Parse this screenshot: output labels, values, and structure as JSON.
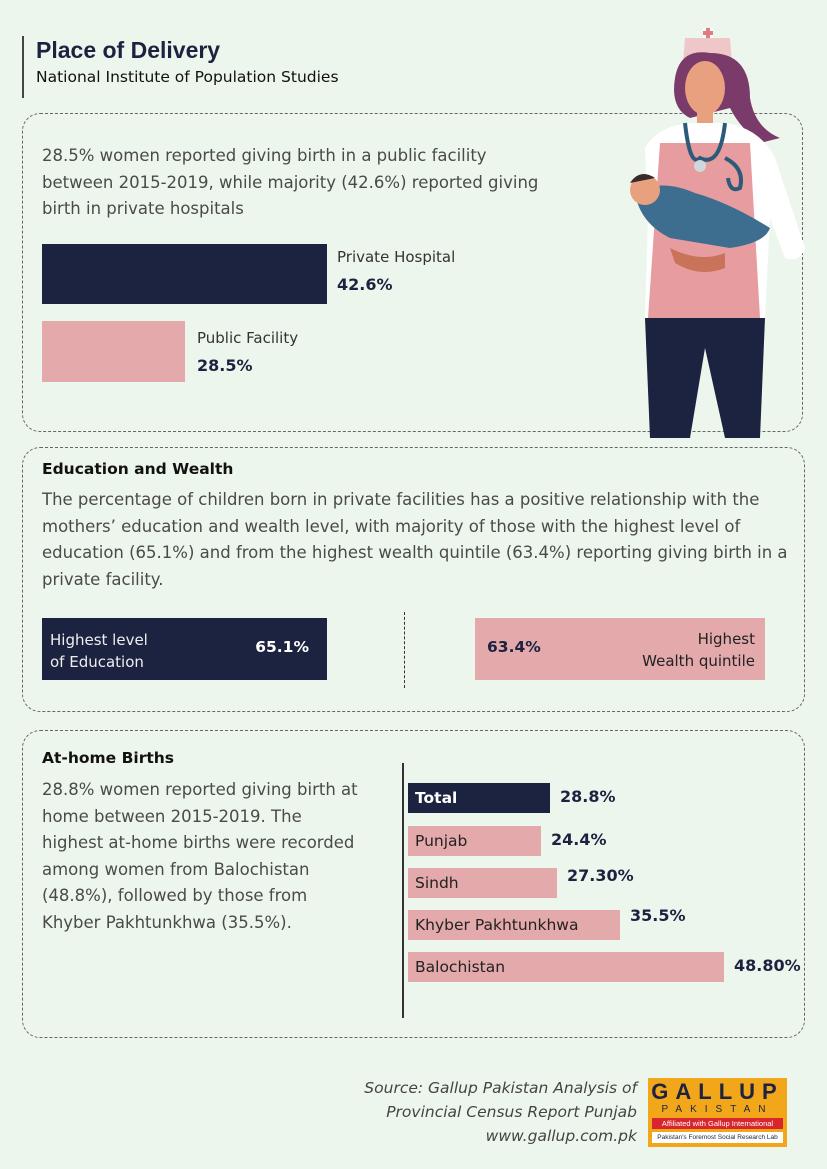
{
  "header": {
    "title": "Place of Delivery",
    "subtitle": "National Institute of Population Studies"
  },
  "section1": {
    "text": "28.5% women reported giving birth in a public facility between 2015-2019, while majority (42.6%) reported giving birth in private hospitals"
  },
  "section2": {
    "heading": "Education and Wealth",
    "text": "The percentage of children born in private facilities has a positive relationship with the mothers’ education and wealth level, with majority of those with the highest level of education (65.1%) and from the highest wealth quintile (63.4%) reporting giving birth in a private facility.",
    "edu_label_1": "Highest level",
    "edu_label_2": "of Education",
    "edu_value": "65.1%",
    "wealth_label_1": "Highest",
    "wealth_label_2": "Wealth quintile",
    "wealth_value": "63.4%"
  },
  "section3": {
    "heading": "At-home Births",
    "text": "28.8% women reported giving birth at home between 2015-2019. The highest at-home births were recorded among women from Balochistan (48.8%), followed by those from Khyber Pakhtunkhwa (35.5%)."
  },
  "footer": {
    "source_1": "Source: Gallup Pakistan Analysis of",
    "source_2": "Provincial Census Report Punjab",
    "url": "www.gallup.com.pk",
    "logo_1": "GALLUP",
    "logo_2": "PAKISTAN",
    "logo_3": "Affiliated with Gallup International",
    "logo_4": "Pakistan's Foremost Social Research Lab"
  },
  "colors": {
    "navy": "#1c2340",
    "pink": "#e3a9ab",
    "background": "#edf6ec"
  },
  "chart_data": [
    {
      "type": "bar",
      "title": "Place of Delivery",
      "categories": [
        "Private Hospital",
        "Public Facility"
      ],
      "values": [
        42.6,
        28.5
      ],
      "labels": [
        "42.6%",
        "28.5%"
      ]
    },
    {
      "type": "bar",
      "title": "Education and Wealth",
      "categories": [
        "Highest level of Education",
        "Highest Wealth quintile"
      ],
      "values": [
        65.1,
        63.4
      ]
    },
    {
      "type": "bar",
      "title": "At-home Births",
      "categories": [
        "Total",
        "Punjab",
        "Sindh",
        "Khyber Pakhtunkhwa",
        "Balochistan"
      ],
      "values": [
        28.8,
        24.4,
        27.3,
        35.5,
        48.8
      ],
      "labels": [
        "28.8%",
        "24.4%",
        "27.30%",
        "35.5%",
        "48.80%"
      ]
    }
  ]
}
